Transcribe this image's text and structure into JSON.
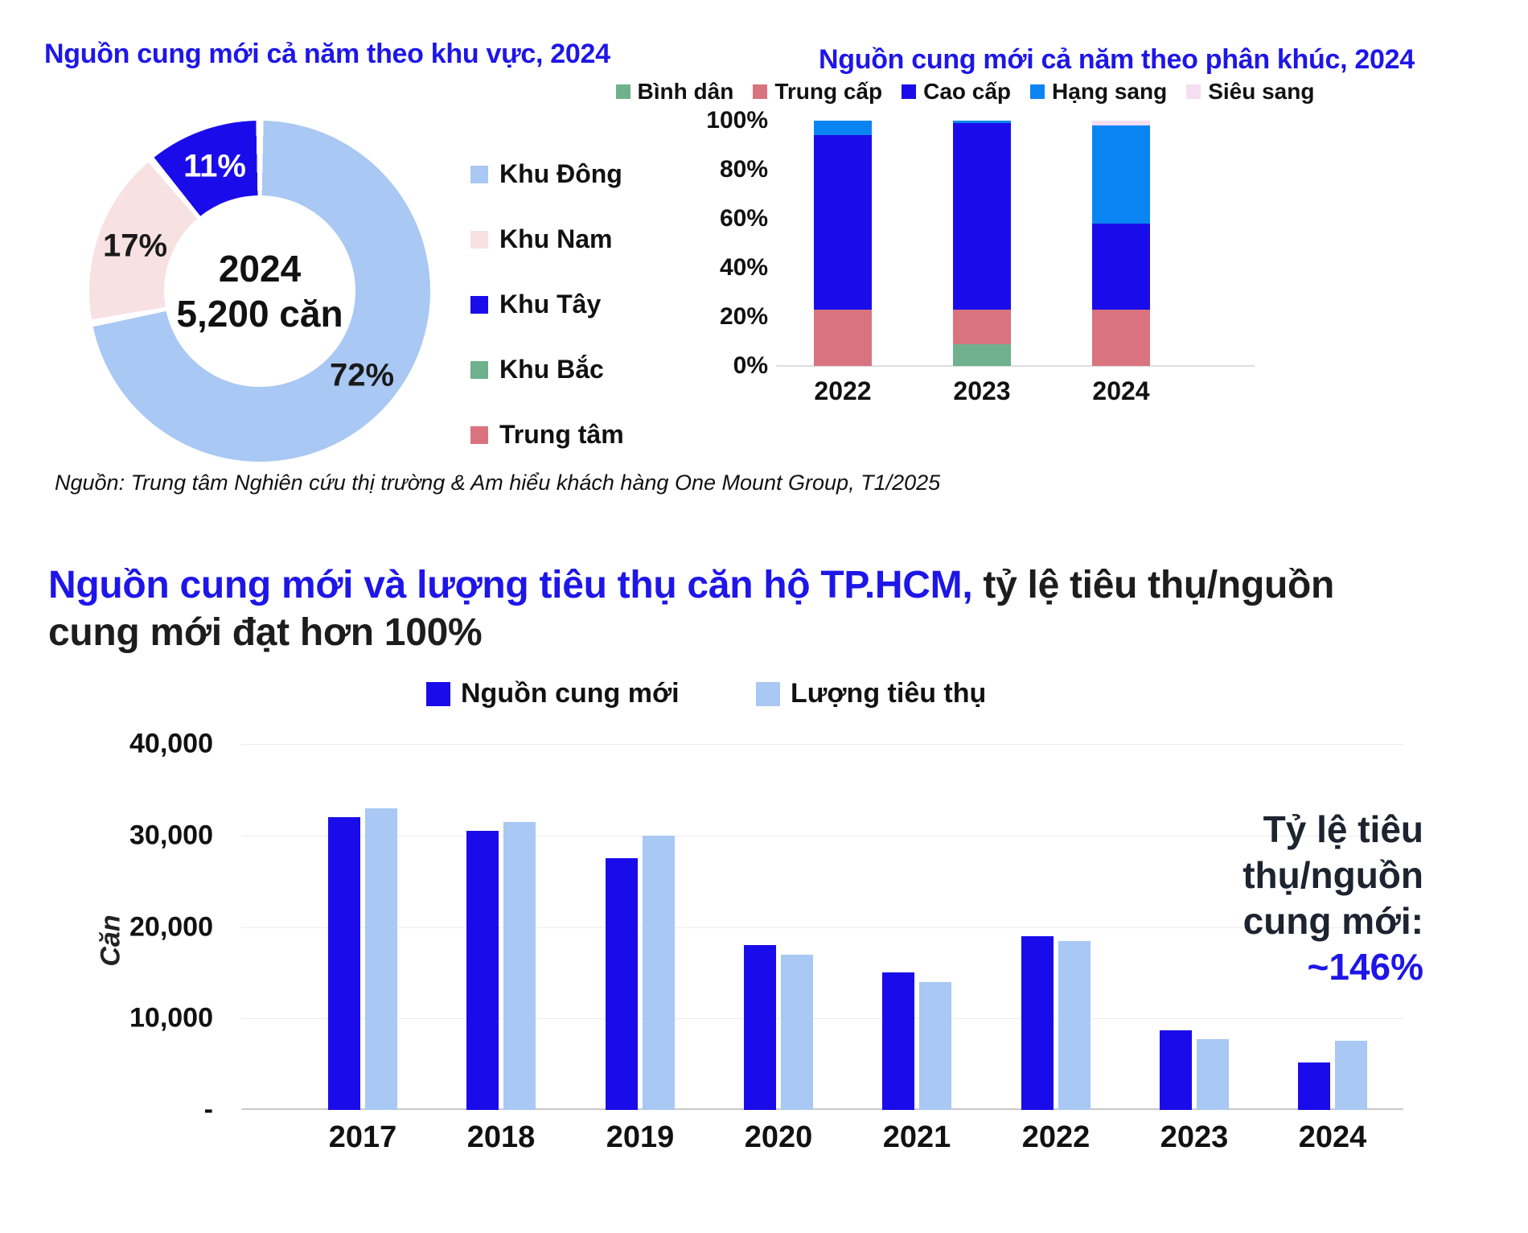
{
  "source_note": "Nguồn: Trung tâm Nghiên cứu thị trường & Am hiểu khách hàng One Mount Group, T1/2025",
  "colors": {
    "accent_blue": "#1e16e8",
    "dark_blue": "#1a0cea",
    "light_blue": "#a9c8f3",
    "pale_pink": "#f7e1e3",
    "green": "#6fb08d",
    "rose": "#d9737f",
    "azure": "#0a84f2",
    "pale_lavender": "#f3def2"
  },
  "chart_data": [
    {
      "type": "pie",
      "title": "Nguồn cung mới cả năm theo khu vực, 2024",
      "center_line1": "2024",
      "center_line2": "5,200 căn",
      "slices": [
        {
          "label": "Khu Đông",
          "value": 72,
          "pct_label": "72%",
          "color": "#a9c8f3",
          "label_color": "#1a1a1a"
        },
        {
          "label": "Khu Nam",
          "value": 17,
          "pct_label": "17%",
          "color": "#f7e1e3",
          "label_color": "#1a1a1a"
        },
        {
          "label": "Khu Tây",
          "value": 11,
          "pct_label": "11%",
          "color": "#1a0cea",
          "label_color": "#ffffff"
        },
        {
          "label": "Khu Bắc",
          "value": 0,
          "pct_label": "",
          "color": "#6fb08d",
          "label_color": "#1a1a1a"
        },
        {
          "label": "Trung tâm",
          "value": 0,
          "pct_label": "",
          "color": "#d9737f",
          "label_color": "#1a1a1a"
        }
      ],
      "legend_position": "right"
    },
    {
      "type": "bar",
      "variant": "stacked-percent",
      "title": "Nguồn cung mới cả năm theo phân khúc, 2024",
      "categories": [
        "2022",
        "2023",
        "2024"
      ],
      "series": [
        {
          "name": "Bình dân",
          "color": "#6fb08d",
          "values": [
            0,
            9,
            0
          ]
        },
        {
          "name": "Trung cấp",
          "color": "#d9737f",
          "values": [
            23,
            14,
            23
          ]
        },
        {
          "name": "Cao cấp",
          "color": "#1a0cea",
          "values": [
            71,
            76,
            35
          ]
        },
        {
          "name": "Hạng sang",
          "color": "#0a84f2",
          "values": [
            6,
            1,
            40
          ]
        },
        {
          "name": "Siêu sang",
          "color": "#f3def2",
          "values": [
            0,
            0,
            2
          ]
        }
      ],
      "y_ticks": [
        "100%",
        "80%",
        "60%",
        "40%",
        "20%",
        "0%"
      ],
      "ylim": [
        0,
        100
      ],
      "legend_position": "top"
    },
    {
      "type": "bar",
      "variant": "grouped",
      "title_accent": "Nguồn cung mới và lượng tiêu thụ căn hộ TP.HCM,",
      "title_rest": " tỷ lệ tiêu thụ/nguồn",
      "title_line2": "cung mới đạt hơn 100%",
      "categories": [
        "2017",
        "2018",
        "2019",
        "2020",
        "2021",
        "2022",
        "2023",
        "2024"
      ],
      "series": [
        {
          "name": "Nguồn cung mới",
          "color": "#1a0cea",
          "values": [
            32000,
            30500,
            27500,
            18000,
            15000,
            19000,
            8700,
            5200
          ]
        },
        {
          "name": "Lượng tiêu thụ",
          "color": "#a9c8f3",
          "values": [
            33000,
            31500,
            30000,
            17000,
            14000,
            18500,
            7700,
            7600
          ]
        }
      ],
      "ylabel": "Căn",
      "y_ticks": [
        "40,000",
        "30,000",
        "20,000",
        "10,000",
        "-"
      ],
      "ylim": [
        0,
        40000
      ],
      "grid": true,
      "legend_position": "top",
      "annotation": {
        "lines": [
          "Tỷ lệ tiêu",
          "thụ/nguồn",
          "cung mới:"
        ],
        "value": "~146%"
      }
    }
  ]
}
